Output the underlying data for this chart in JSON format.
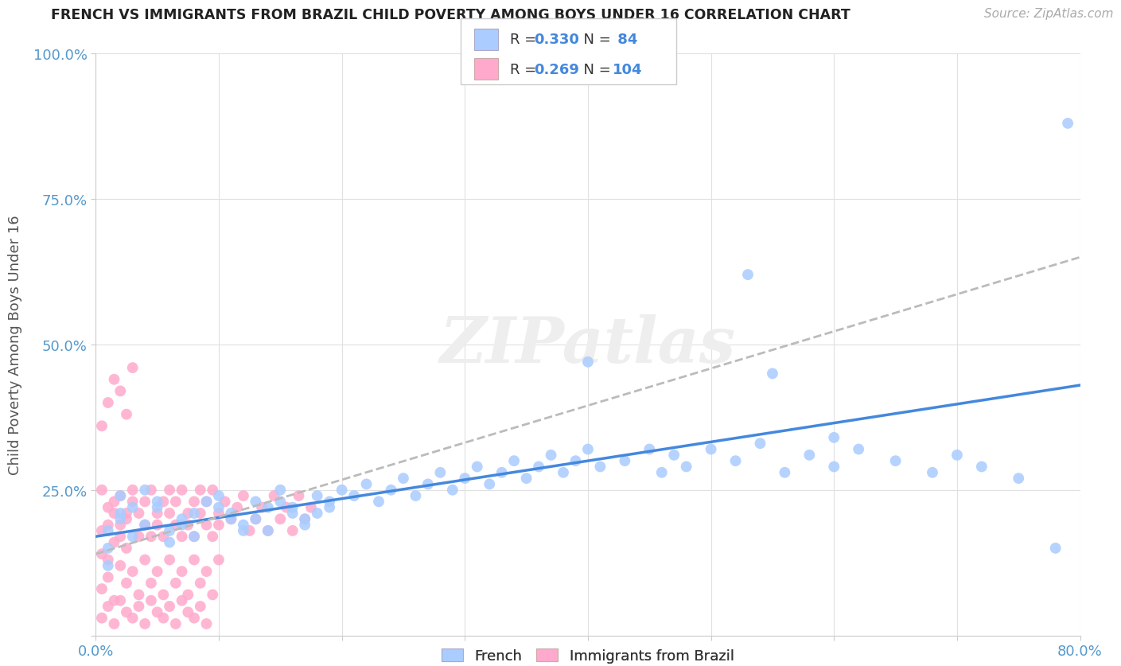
{
  "title": "FRENCH VS IMMIGRANTS FROM BRAZIL CHILD POVERTY AMONG BOYS UNDER 16 CORRELATION CHART",
  "source": "Source: ZipAtlas.com",
  "ylabel": "Child Poverty Among Boys Under 16",
  "x_min": 0.0,
  "x_max": 0.8,
  "y_min": 0.0,
  "y_max": 1.0,
  "french_color": "#aaccff",
  "brazil_color": "#ffaacc",
  "french_line_color": "#4488dd",
  "trendline_color": "#bbbbbb",
  "legend_R_french": "0.330",
  "legend_N_french": "84",
  "legend_R_brazil": "0.269",
  "legend_N_brazil": "104",
  "background_color": "#ffffff",
  "grid_color": "#e0e0e0",
  "french_x": [
    0.02,
    0.01,
    0.03,
    0.01,
    0.02,
    0.04,
    0.01,
    0.03,
    0.02,
    0.05,
    0.06,
    0.04,
    0.07,
    0.05,
    0.06,
    0.08,
    0.07,
    0.09,
    0.08,
    0.1,
    0.11,
    0.1,
    0.12,
    0.11,
    0.13,
    0.12,
    0.14,
    0.13,
    0.15,
    0.14,
    0.16,
    0.15,
    0.17,
    0.16,
    0.18,
    0.17,
    0.19,
    0.18,
    0.2,
    0.19,
    0.21,
    0.22,
    0.23,
    0.24,
    0.25,
    0.26,
    0.27,
    0.28,
    0.29,
    0.3,
    0.31,
    0.32,
    0.33,
    0.34,
    0.35,
    0.36,
    0.37,
    0.38,
    0.39,
    0.4,
    0.41,
    0.43,
    0.45,
    0.46,
    0.47,
    0.48,
    0.5,
    0.52,
    0.54,
    0.56,
    0.58,
    0.6,
    0.62,
    0.65,
    0.68,
    0.7,
    0.72,
    0.75,
    0.4,
    0.53,
    0.55,
    0.6,
    0.79,
    0.78
  ],
  "french_y": [
    0.2,
    0.18,
    0.22,
    0.15,
    0.24,
    0.19,
    0.12,
    0.17,
    0.21,
    0.23,
    0.18,
    0.25,
    0.2,
    0.22,
    0.16,
    0.21,
    0.19,
    0.23,
    0.17,
    0.22,
    0.2,
    0.24,
    0.18,
    0.21,
    0.23,
    0.19,
    0.22,
    0.2,
    0.25,
    0.18,
    0.21,
    0.23,
    0.19,
    0.22,
    0.24,
    0.2,
    0.23,
    0.21,
    0.25,
    0.22,
    0.24,
    0.26,
    0.23,
    0.25,
    0.27,
    0.24,
    0.26,
    0.28,
    0.25,
    0.27,
    0.29,
    0.26,
    0.28,
    0.3,
    0.27,
    0.29,
    0.31,
    0.28,
    0.3,
    0.32,
    0.29,
    0.3,
    0.32,
    0.28,
    0.31,
    0.29,
    0.32,
    0.3,
    0.33,
    0.28,
    0.31,
    0.29,
    0.32,
    0.3,
    0.28,
    0.31,
    0.29,
    0.27,
    0.47,
    0.62,
    0.45,
    0.34,
    0.88,
    0.15
  ],
  "brazil_x": [
    0.005,
    0.01,
    0.015,
    0.02,
    0.025,
    0.005,
    0.01,
    0.015,
    0.02,
    0.025,
    0.005,
    0.01,
    0.015,
    0.02,
    0.025,
    0.03,
    0.035,
    0.03,
    0.035,
    0.04,
    0.04,
    0.045,
    0.045,
    0.05,
    0.05,
    0.055,
    0.055,
    0.06,
    0.06,
    0.065,
    0.065,
    0.07,
    0.07,
    0.075,
    0.075,
    0.08,
    0.08,
    0.085,
    0.085,
    0.09,
    0.09,
    0.095,
    0.095,
    0.1,
    0.1,
    0.105,
    0.11,
    0.115,
    0.12,
    0.125,
    0.005,
    0.01,
    0.015,
    0.02,
    0.025,
    0.03,
    0.035,
    0.04,
    0.045,
    0.05,
    0.055,
    0.06,
    0.065,
    0.07,
    0.075,
    0.08,
    0.085,
    0.09,
    0.095,
    0.1,
    0.005,
    0.01,
    0.015,
    0.02,
    0.025,
    0.03,
    0.13,
    0.135,
    0.14,
    0.145,
    0.15,
    0.155,
    0.16,
    0.165,
    0.17,
    0.175,
    0.005,
    0.01,
    0.015,
    0.02,
    0.025,
    0.03,
    0.035,
    0.04,
    0.045,
    0.05,
    0.055,
    0.06,
    0.065,
    0.07,
    0.075,
    0.08,
    0.085,
    0.09
  ],
  "brazil_y": [
    0.18,
    0.22,
    0.16,
    0.24,
    0.2,
    0.14,
    0.19,
    0.23,
    0.17,
    0.21,
    0.25,
    0.13,
    0.21,
    0.19,
    0.15,
    0.23,
    0.17,
    0.25,
    0.21,
    0.19,
    0.23,
    0.17,
    0.25,
    0.21,
    0.19,
    0.23,
    0.17,
    0.25,
    0.21,
    0.19,
    0.23,
    0.17,
    0.25,
    0.21,
    0.19,
    0.23,
    0.17,
    0.25,
    0.21,
    0.19,
    0.23,
    0.17,
    0.25,
    0.21,
    0.19,
    0.23,
    0.2,
    0.22,
    0.24,
    0.18,
    0.08,
    0.1,
    0.06,
    0.12,
    0.09,
    0.11,
    0.07,
    0.13,
    0.09,
    0.11,
    0.07,
    0.13,
    0.09,
    0.11,
    0.07,
    0.13,
    0.09,
    0.11,
    0.07,
    0.13,
    0.36,
    0.4,
    0.44,
    0.42,
    0.38,
    0.46,
    0.2,
    0.22,
    0.18,
    0.24,
    0.2,
    0.22,
    0.18,
    0.24,
    0.2,
    0.22,
    0.03,
    0.05,
    0.02,
    0.06,
    0.04,
    0.03,
    0.05,
    0.02,
    0.06,
    0.04,
    0.03,
    0.05,
    0.02,
    0.06,
    0.04,
    0.03,
    0.05,
    0.02
  ],
  "french_trend_x0": 0.0,
  "french_trend_x1": 0.8,
  "french_trend_y0": 0.17,
  "french_trend_y1": 0.43,
  "brazil_trend_x0": 0.0,
  "brazil_trend_x1": 0.8,
  "brazil_trend_y0": 0.14,
  "brazil_trend_y1": 0.65
}
